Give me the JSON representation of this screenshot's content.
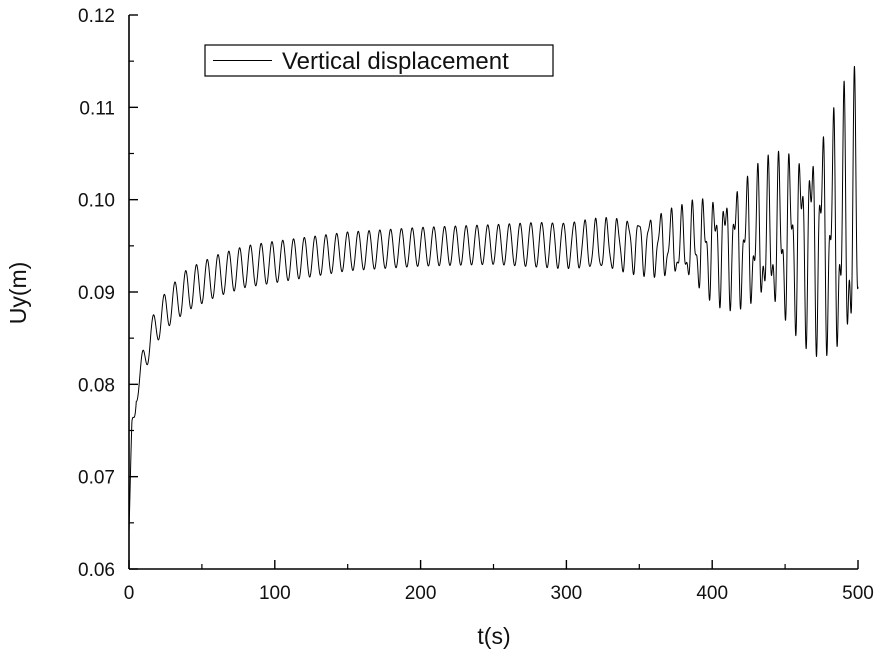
{
  "chart_data": {
    "type": "line",
    "title": "",
    "xlabel": "t(s)",
    "ylabel": "Uy(m)",
    "xlim": [
      0,
      500
    ],
    "ylim": [
      0.06,
      0.12
    ],
    "x_ticks": [
      0,
      100,
      200,
      300,
      400,
      500
    ],
    "x_tick_labels": [
      "0",
      "100",
      "200",
      "300",
      "400",
      "500"
    ],
    "y_ticks": [
      0.06,
      0.07,
      0.08,
      0.09,
      0.1,
      0.11,
      0.12
    ],
    "y_tick_labels": [
      "0.06",
      "0.07",
      "0.08",
      "0.09",
      "0.10",
      "0.11",
      "0.12"
    ],
    "grid": false,
    "legend": {
      "position": "top-left",
      "entries": [
        "Vertical displacement"
      ]
    },
    "series": [
      {
        "name": "Vertical displacement",
        "color": "#000000",
        "x_start": 0,
        "x_end": 500,
        "oscillation_period": 7.4,
        "upper_envelope": [
          [
            0,
            0.066
          ],
          [
            2,
            0.076
          ],
          [
            5,
            0.081
          ],
          [
            10,
            0.084
          ],
          [
            15,
            0.087
          ],
          [
            25,
            0.09
          ],
          [
            40,
            0.0925
          ],
          [
            60,
            0.094
          ],
          [
            80,
            0.095
          ],
          [
            100,
            0.0955
          ],
          [
            150,
            0.0965
          ],
          [
            200,
            0.097
          ],
          [
            250,
            0.0973
          ],
          [
            300,
            0.0977
          ],
          [
            320,
            0.098
          ],
          [
            350,
            0.0985
          ],
          [
            380,
            0.0995
          ],
          [
            400,
            0.1015
          ],
          [
            420,
            0.103
          ],
          [
            440,
            0.105
          ],
          [
            460,
            0.1075
          ],
          [
            480,
            0.1105
          ],
          [
            490,
            0.113
          ],
          [
            500,
            0.115
          ]
        ],
        "lower_envelope": [
          [
            0,
            0.062
          ],
          [
            2,
            0.069
          ],
          [
            5,
            0.078
          ],
          [
            10,
            0.0805
          ],
          [
            15,
            0.0835
          ],
          [
            25,
            0.086
          ],
          [
            40,
            0.088
          ],
          [
            60,
            0.0895
          ],
          [
            80,
            0.0905
          ],
          [
            100,
            0.091
          ],
          [
            150,
            0.0923
          ],
          [
            200,
            0.0928
          ],
          [
            250,
            0.093
          ],
          [
            300,
            0.0925
          ],
          [
            320,
            0.0922
          ],
          [
            350,
            0.0918
          ],
          [
            380,
            0.0905
          ],
          [
            400,
            0.0885
          ],
          [
            420,
            0.0875
          ],
          [
            440,
            0.086
          ],
          [
            460,
            0.0845
          ],
          [
            480,
            0.0815
          ],
          [
            490,
            0.0795
          ],
          [
            500,
            0.0785
          ]
        ]
      }
    ]
  }
}
